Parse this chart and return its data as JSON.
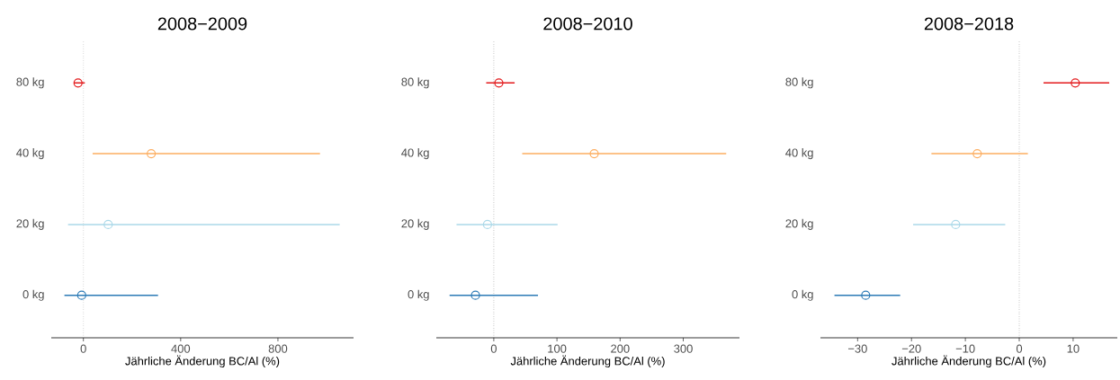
{
  "chart_data": [
    {
      "type": "scatter",
      "orientation": "horizontal",
      "title": "2008−2009",
      "xlabel": "Jährliche Änderung BC/Al (%)",
      "categories": [
        "80 kg",
        "40 kg",
        "20 kg",
        "0 kg"
      ],
      "marker": "circle",
      "series": [
        {
          "colors": [
            "#e31a1c",
            "#fdae61",
            "#abd9e9",
            "#2c7bb6"
          ],
          "values": [
            -22,
            279,
            102,
            -7
          ],
          "errors": [
            [
              -38,
              6
            ],
            [
              38,
              973
            ],
            [
              -63,
              1054
            ],
            [
              -78,
              307
            ]
          ]
        }
      ],
      "xlim": [
        -132,
        1111
      ],
      "xticks": [
        0,
        400,
        800
      ],
      "ref_lines": [
        {
          "axis": "x",
          "value": 0,
          "color": "#999999",
          "line_style": "dotted"
        }
      ]
    },
    {
      "type": "scatter",
      "orientation": "horizontal",
      "title": "2008−2010",
      "xlabel": "Jährliche Änderung BC/Al (%)",
      "categories": [
        "80 kg",
        "40 kg",
        "20 kg",
        "0 kg"
      ],
      "marker": "circle",
      "series": [
        {
          "colors": [
            "#e31a1c",
            "#fdae61",
            "#abd9e9",
            "#2c7bb6"
          ],
          "values": [
            8,
            159,
            -10,
            -29
          ],
          "errors": [
            [
              -12,
              33
            ],
            [
              45,
              368
            ],
            [
              -59,
              101
            ],
            [
              -70,
              70
            ]
          ]
        }
      ],
      "xlim": [
        -91,
        389
      ],
      "xticks": [
        0,
        100,
        200,
        300
      ],
      "ref_lines": [
        {
          "axis": "x",
          "value": 0,
          "color": "#666666",
          "line_style": "dotted"
        }
      ]
    },
    {
      "type": "scatter",
      "orientation": "horizontal",
      "title": "2008−2018",
      "xlabel": "Jährliche Änderung BC/Al (%)",
      "categories": [
        "80 kg",
        "40 kg",
        "20 kg",
        "0 kg"
      ],
      "marker": "circle",
      "series": [
        {
          "colors": [
            "#e31a1c",
            "#fdae61",
            "#abd9e9",
            "#2c7bb6"
          ],
          "values": [
            10.4,
            -7.8,
            -11.8,
            -28.5
          ],
          "errors": [
            [
              4.5,
              16.7
            ],
            [
              -16.3,
              1.6
            ],
            [
              -19.7,
              -2.6
            ],
            [
              -34.3,
              -22.1
            ]
          ]
        }
      ],
      "xlim": [
        -36.9,
        18.2
      ],
      "xticks": [
        {
          "value": -30,
          "label": "−30"
        },
        {
          "value": -20,
          "label": "−20"
        },
        {
          "value": -10,
          "label": "−10"
        },
        0,
        10
      ],
      "ref_lines": [
        {
          "axis": "x",
          "value": 0,
          "color": "#666666",
          "line_style": "dotted"
        }
      ]
    }
  ]
}
